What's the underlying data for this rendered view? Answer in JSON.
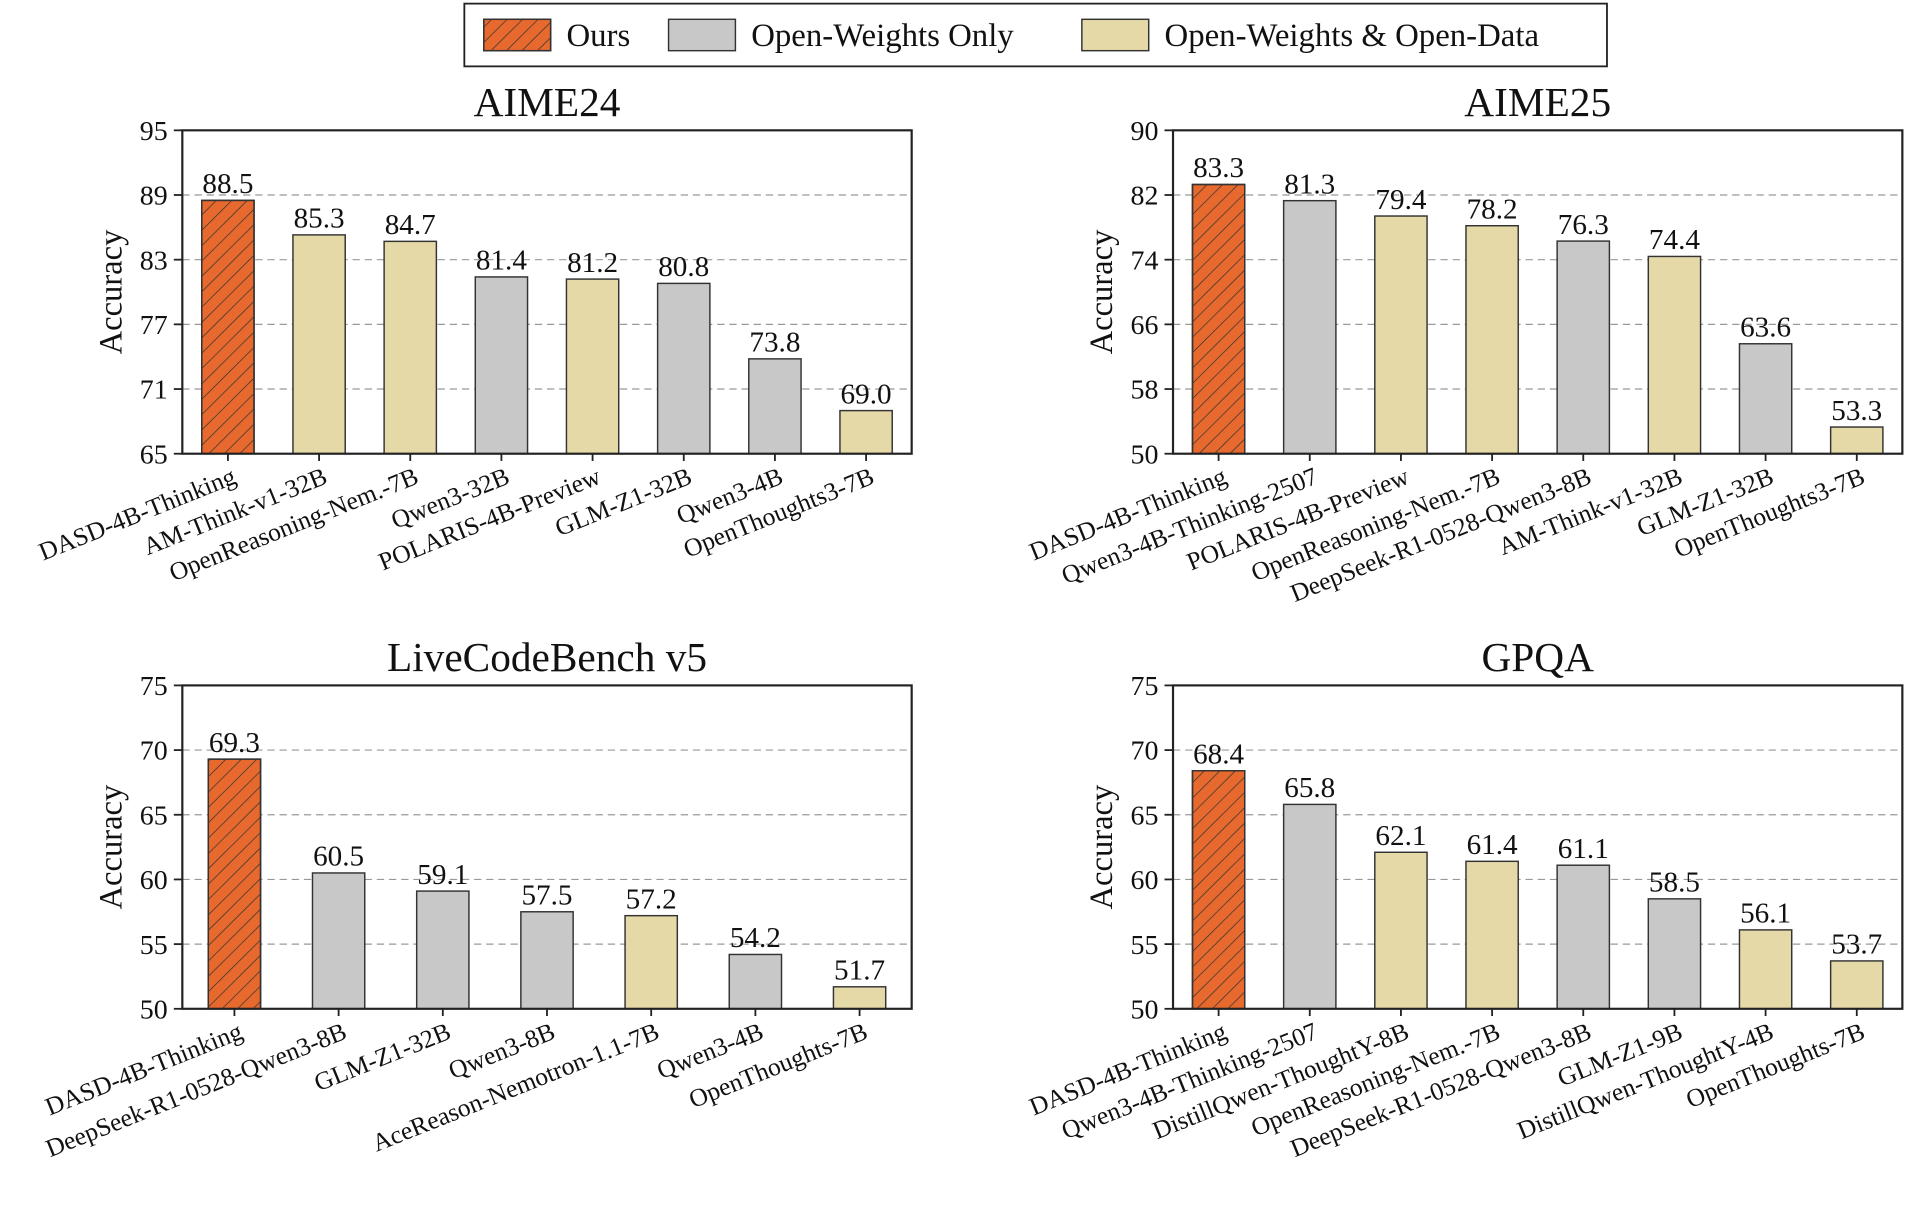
{
  "legend": [
    {
      "name": "Ours",
      "color": "#e8692e",
      "hatch": true
    },
    {
      "name": "Open-Weights Only",
      "color": "#c8c8c8"
    },
    {
      "name": "Open-Weights & Open-Data",
      "color": "#e6d9a8"
    }
  ],
  "chart_data": [
    {
      "type": "bar",
      "title": "AIME24",
      "ylabel": "Accuracy",
      "categories": [
        "DASD-4B-Thinking",
        "AM-Think-v1-32B",
        "OpenReasoning-Nem.-7B",
        "Qwen3-32B",
        "POLARIS-4B-Preview",
        "GLM-Z1-32B",
        "Qwen3-4B",
        "OpenThoughts3-7B"
      ],
      "values": [
        88.5,
        85.3,
        84.7,
        81.4,
        81.2,
        80.8,
        73.8,
        69.0
      ],
      "value_labels": [
        "88.5",
        "85.3",
        "84.7",
        "81.4",
        "81.2",
        "80.8",
        "73.8",
        "69.0"
      ],
      "colors": [
        "#e8692e",
        "#e6d9a8",
        "#e6d9a8",
        "#c8c8c8",
        "#e6d9a8",
        "#c8c8c8",
        "#c8c8c8",
        "#e6d9a8"
      ],
      "ylim": [
        65,
        95
      ],
      "yticks": [
        65,
        71,
        77,
        83,
        89,
        95
      ],
      "grid": true
    },
    {
      "type": "bar",
      "title": "AIME25",
      "ylabel": "Accuracy",
      "categories": [
        "DASD-4B-Thinking",
        "Qwen3-4B-Thinking-2507",
        "POLARIS-4B-Preview",
        "OpenReasoning-Nem.-7B",
        "DeepSeek-R1-0528-Qwen3-8B",
        "AM-Think-v1-32B",
        "GLM-Z1-32B",
        "OpenThoughts3-7B"
      ],
      "values": [
        83.3,
        81.3,
        79.4,
        78.2,
        76.3,
        74.4,
        63.6,
        53.3
      ],
      "colors": [
        "#e8692e",
        "#c8c8c8",
        "#e6d9a8",
        "#e6d9a8",
        "#c8c8c8",
        "#e6d9a8",
        "#c8c8c8",
        "#e6d9a8"
      ],
      "ylim": [
        50,
        90
      ],
      "yticks": [
        50,
        58,
        66,
        74,
        82,
        90
      ],
      "grid": true
    },
    {
      "type": "bar",
      "title": "LiveCodeBench v5",
      "ylabel": "Accuracy",
      "categories": [
        "DASD-4B-Thinking",
        "DeepSeek-R1-0528-Qwen3-8B",
        "GLM-Z1-32B",
        "Qwen3-8B",
        "AceReason-Nemotron-1.1-7B",
        "Qwen3-4B",
        "OpenThoughts-7B"
      ],
      "values": [
        69.3,
        60.5,
        59.1,
        57.5,
        57.2,
        54.2,
        51.7
      ],
      "colors": [
        "#e8692e",
        "#c8c8c8",
        "#c8c8c8",
        "#c8c8c8",
        "#e6d9a8",
        "#c8c8c8",
        "#e6d9a8"
      ],
      "ylim": [
        50,
        75
      ],
      "yticks": [
        50,
        55,
        60,
        65,
        70,
        75
      ],
      "grid": true
    },
    {
      "type": "bar",
      "title": "GPQA",
      "ylabel": "Accuracy",
      "categories": [
        "DASD-4B-Thinking",
        "Qwen3-4B-Thinking-2507",
        "DistillQwen-ThoughtY-8B",
        "OpenReasoning-Nem.-7B",
        "DeepSeek-R1-0528-Qwen3-8B",
        "GLM-Z1-9B",
        "DistillQwen-ThoughtY-4B",
        "OpenThoughts-7B"
      ],
      "values": [
        68.4,
        65.8,
        62.1,
        61.4,
        61.1,
        58.5,
        56.1,
        53.7
      ],
      "colors": [
        "#e8692e",
        "#c8c8c8",
        "#e6d9a8",
        "#e6d9a8",
        "#c8c8c8",
        "#c8c8c8",
        "#e6d9a8",
        "#e6d9a8"
      ],
      "ylim": [
        50,
        75
      ],
      "yticks": [
        50,
        55,
        60,
        65,
        70,
        75
      ],
      "grid": true
    }
  ]
}
